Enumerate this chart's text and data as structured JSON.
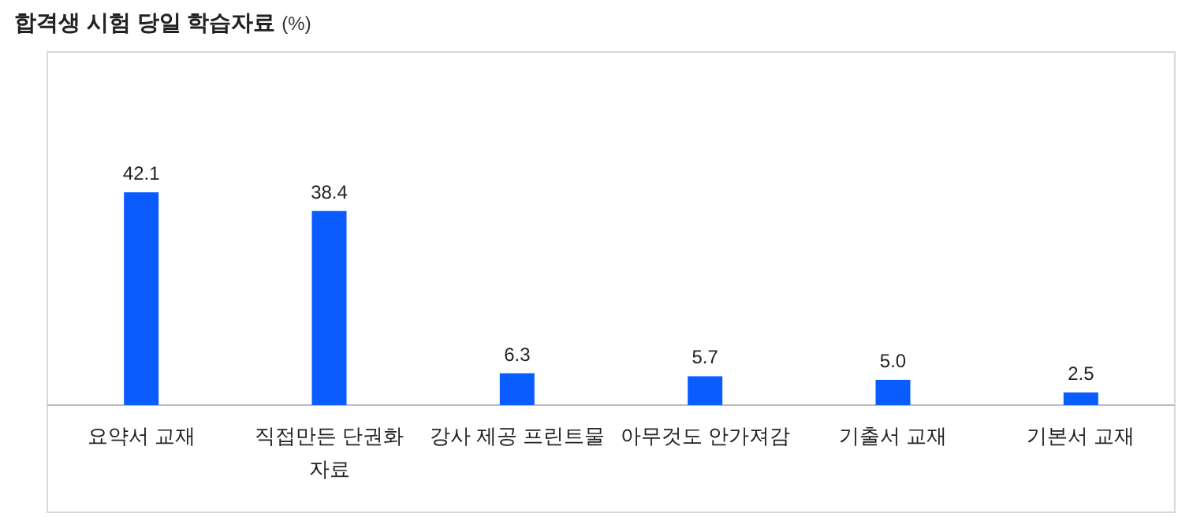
{
  "chart_data": {
    "type": "bar",
    "title": "합격생 시험 당일 학습자료",
    "subtitle": "(%)",
    "categories": [
      "요약서 교재",
      "직접만든 단권화 자료",
      "강사 제공 프린트물",
      "아무것도 안가져감",
      "기출서 교재",
      "기본서 교재"
    ],
    "values": [
      42.1,
      38.4,
      6.3,
      5.7,
      5.0,
      2.5
    ],
    "value_labels": [
      "42.1",
      "38.4",
      "6.3",
      "5.7",
      "5.0",
      "2.5"
    ],
    "color": "#0a5cff"
  }
}
